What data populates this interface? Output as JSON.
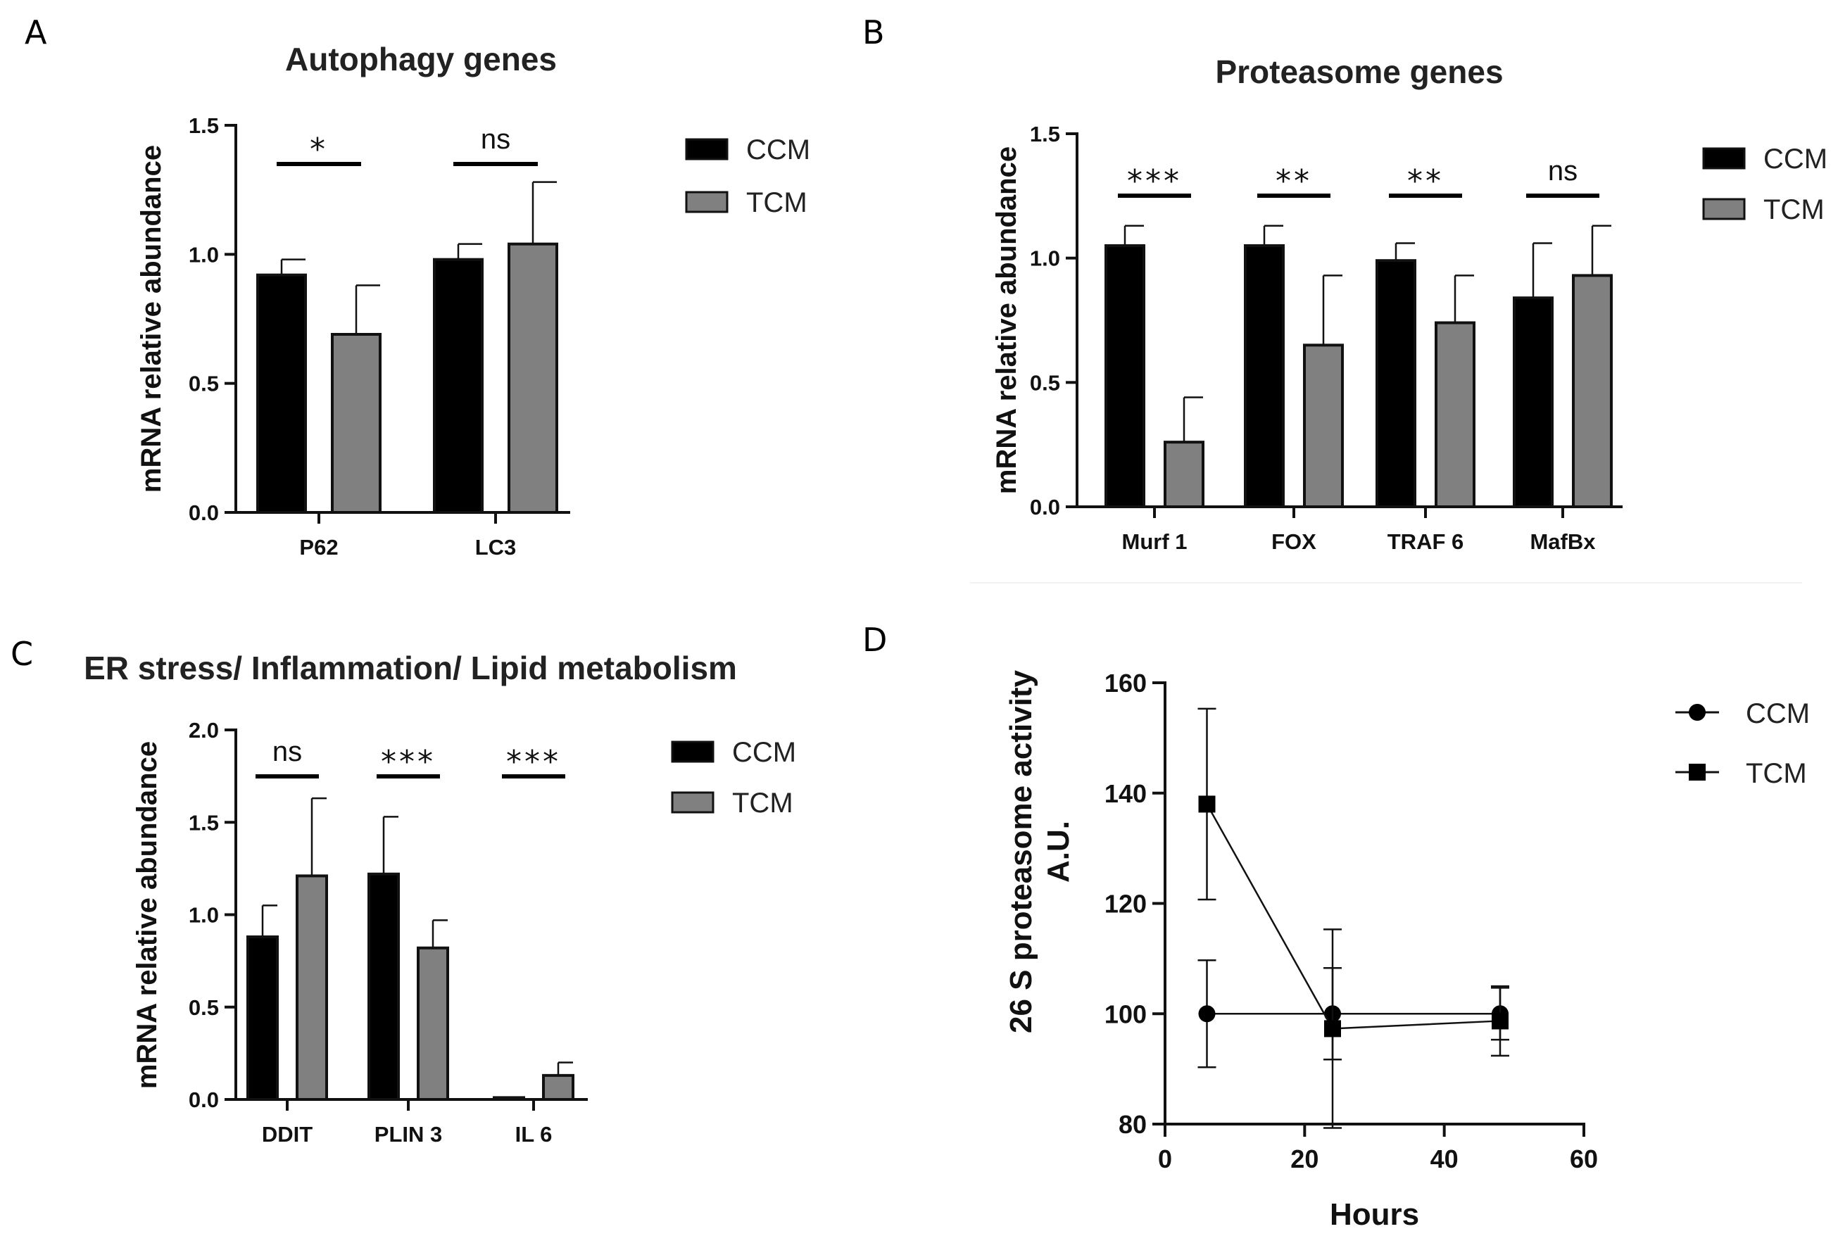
{
  "colors": {
    "ccm": "#000000",
    "tcm": "#808080",
    "axis": "#111111"
  },
  "panel_labels": [
    "A",
    "B",
    "C",
    "D"
  ],
  "chart_data": [
    {
      "id": "A",
      "type": "bar",
      "title": "Autophagy genes",
      "ylabel": "mRNA relative abundance",
      "xlabel": "",
      "ylim": [
        0,
        1.5
      ],
      "yticks": [
        "0.0",
        "0.5",
        "1.0",
        "1.5"
      ],
      "ytick_values": [
        0,
        0.5,
        1.0,
        1.5
      ],
      "categories": [
        "P62",
        "LC3"
      ],
      "series": [
        {
          "name": "CCM",
          "values": [
            0.92,
            0.98
          ],
          "errors": [
            0.06,
            0.06
          ]
        },
        {
          "name": "TCM",
          "values": [
            0.69,
            1.04
          ],
          "errors": [
            0.19,
            0.24
          ]
        }
      ],
      "significance": [
        "*",
        "ns"
      ],
      "legend": [
        "CCM",
        "TCM"
      ],
      "legend_position": "right"
    },
    {
      "id": "B",
      "type": "bar",
      "title": "Proteasome genes",
      "ylabel": "mRNA relative abundance",
      "xlabel": "",
      "ylim": [
        0,
        1.5
      ],
      "yticks": [
        "0.0",
        "0.5",
        "1.0",
        "1.5"
      ],
      "ytick_values": [
        0,
        0.5,
        1.0,
        1.5
      ],
      "categories": [
        "Murf 1",
        "FOX",
        "TRAF 6",
        "MafBx"
      ],
      "series": [
        {
          "name": "CCM",
          "values": [
            1.05,
            1.05,
            0.99,
            0.84
          ],
          "errors": [
            0.08,
            0.08,
            0.07,
            0.22
          ]
        },
        {
          "name": "TCM",
          "values": [
            0.26,
            0.65,
            0.74,
            0.93
          ],
          "errors": [
            0.18,
            0.28,
            0.19,
            0.2
          ]
        }
      ],
      "significance": [
        "***",
        "**",
        "**",
        "ns"
      ],
      "legend": [
        "CCM",
        "TCM"
      ],
      "legend_position": "right"
    },
    {
      "id": "C",
      "type": "bar",
      "title": "ER stress/ Inflammation/ Lipid metabolism",
      "ylabel": "mRNA relative abundance",
      "xlabel": "",
      "ylim": [
        0,
        2.0
      ],
      "yticks": [
        "0.0",
        "0.5",
        "1.0",
        "1.5",
        "2.0"
      ],
      "ytick_values": [
        0,
        0.5,
        1.0,
        1.5,
        2.0
      ],
      "categories": [
        "DDIT",
        "PLIN 3",
        "IL 6"
      ],
      "series": [
        {
          "name": "CCM",
          "values": [
            0.88,
            1.22,
            0.01
          ],
          "errors": [
            0.17,
            0.31,
            0.0
          ]
        },
        {
          "name": "TCM",
          "values": [
            1.21,
            0.82,
            0.13
          ],
          "errors": [
            0.42,
            0.15,
            0.07
          ]
        }
      ],
      "significance": [
        "ns",
        "***",
        "***"
      ],
      "legend": [
        "CCM",
        "TCM"
      ],
      "legend_position": "right"
    },
    {
      "id": "D",
      "type": "line",
      "title": "",
      "ylabel": "26 S proteasome activity A.U.",
      "ylabel_lines": [
        "26 S proteasome activity",
        "A.U."
      ],
      "xlabel": "Hours",
      "xlim": [
        0,
        60
      ],
      "ylim": [
        80,
        160
      ],
      "xticks": [
        "0",
        "20",
        "40",
        "60"
      ],
      "xtick_values": [
        0,
        20,
        40,
        60
      ],
      "yticks": [
        "80",
        "100",
        "120",
        "140",
        "160"
      ],
      "ytick_values": [
        80,
        100,
        120,
        140,
        160
      ],
      "series": [
        {
          "name": "CCM",
          "marker": "circle",
          "x": [
            6,
            24,
            48
          ],
          "y": [
            100,
            100,
            100
          ],
          "errors": [
            9.7,
            8.3,
            4.7
          ]
        },
        {
          "name": "TCM",
          "marker": "square",
          "x": [
            6,
            24,
            48
          ],
          "y": [
            138,
            97.3,
            98.7
          ],
          "errors": [
            17.3,
            18.0,
            6.3
          ]
        }
      ],
      "legend": [
        "CCM",
        "TCM"
      ],
      "legend_position": "right"
    }
  ]
}
